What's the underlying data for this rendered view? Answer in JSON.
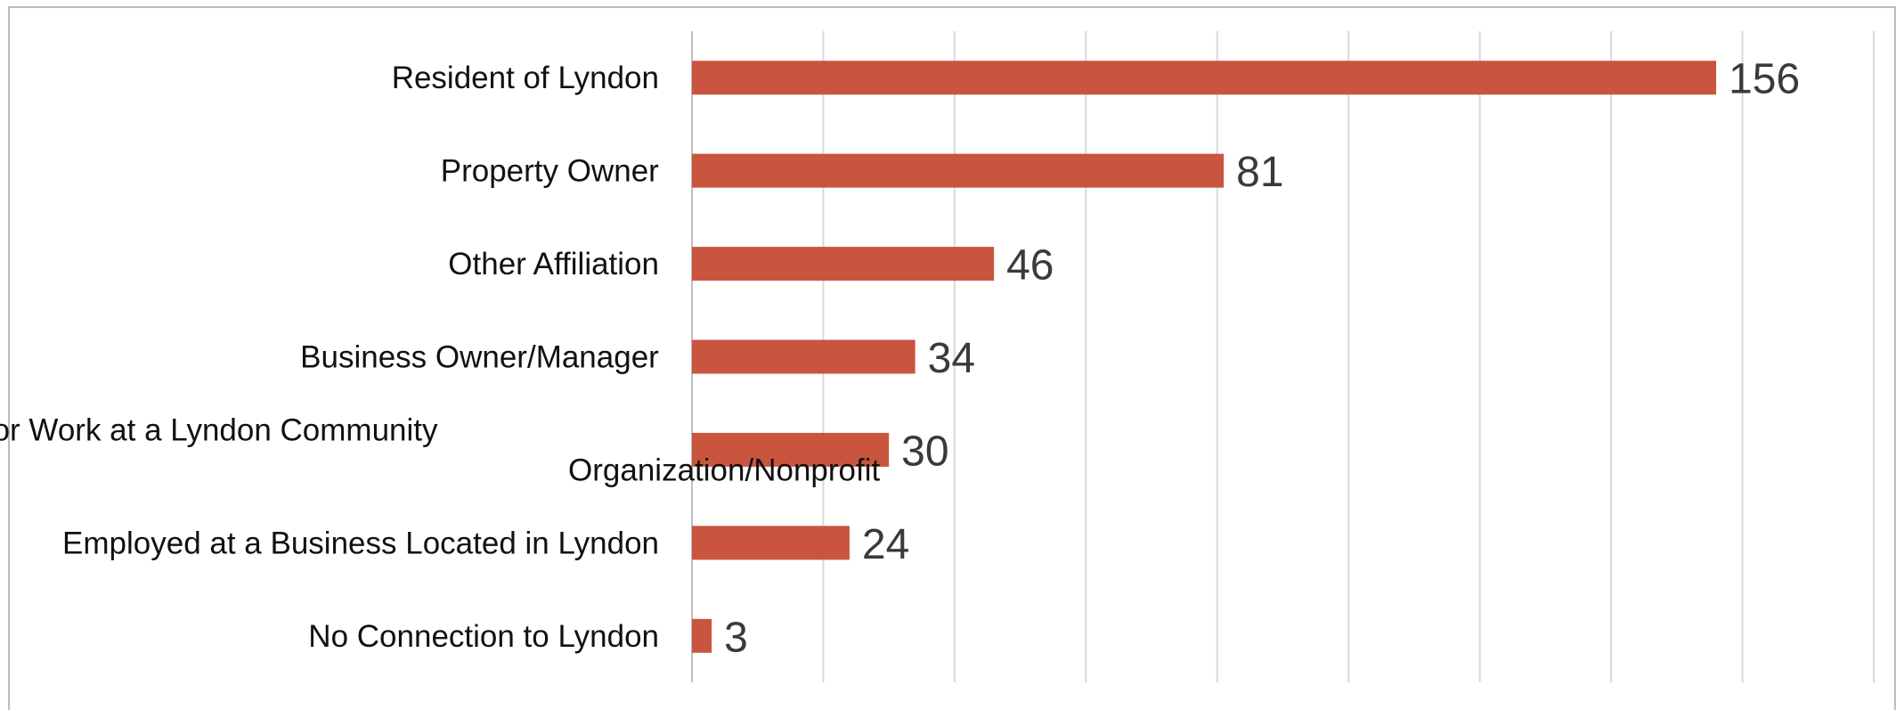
{
  "chart_data": {
    "type": "bar",
    "orientation": "horizontal",
    "categories": [
      [
        "Resident of Lyndon"
      ],
      [
        "Property Owner"
      ],
      [
        "Other Affiliation"
      ],
      [
        "Business Owner/Manager"
      ],
      [
        "Affiliated or Work at a Lyndon Community",
        "Organization/Nonprofit"
      ],
      [
        "Employed at a Business Located in Lyndon"
      ],
      [
        "No Connection to Lyndon"
      ]
    ],
    "values": [
      156,
      81,
      46,
      34,
      30,
      24,
      3
    ],
    "data_labels": [
      "156",
      "81",
      "46",
      "34",
      "30",
      "24",
      "3"
    ],
    "title": "",
    "xlabel": "",
    "ylabel": "",
    "xlim": [
      0,
      180
    ],
    "grid": "vertical",
    "legend": "none",
    "colors": {
      "bar": "#c9553f",
      "grid": "#d9d9d9",
      "axis": "#bfbfbf"
    }
  }
}
